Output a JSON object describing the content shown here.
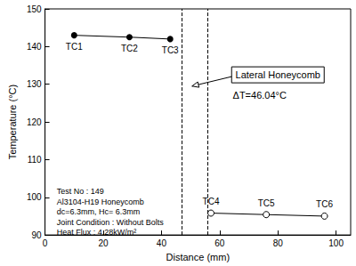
{
  "chart_data": {
    "type": "line",
    "x_label": "Distance (mm)",
    "y_label": "Temperature (°C)",
    "xlim": [
      0,
      105
    ],
    "xticks": [
      0,
      20,
      40,
      60,
      80,
      100
    ],
    "ylim": [
      90,
      150
    ],
    "yticks": [
      90,
      100,
      110,
      120,
      130,
      140,
      150
    ],
    "grid": false,
    "series": [
      {
        "x": [
          10,
          29,
          43
        ],
        "values": [
          143,
          142.5,
          142
        ],
        "point_labels": [
          "TC1",
          "TC2",
          "TC3"
        ],
        "color": "#000000",
        "marker": "circle"
      },
      {
        "x": [
          57,
          76,
          96
        ],
        "values": [
          95.8,
          95.4,
          95.0
        ],
        "point_labels": [
          "TC4",
          "TC5",
          "TC6"
        ],
        "color": "#000000",
        "marker": "open_circle"
      }
    ],
    "honeycomb_bounds": [
      47,
      56
    ],
    "annotations": {
      "honeycomb": "Lateral Honeycomb",
      "delta_t": "ΔT=46.04°C",
      "test_info": [
        "Test No : 149",
        "Al3104-H19 Honeycomb",
        "dc=6.3mm, Hc= 6.3mm",
        "Joint Condition : Without Bolts",
        "Heat Flux : 4.28kW/m²"
      ]
    }
  }
}
